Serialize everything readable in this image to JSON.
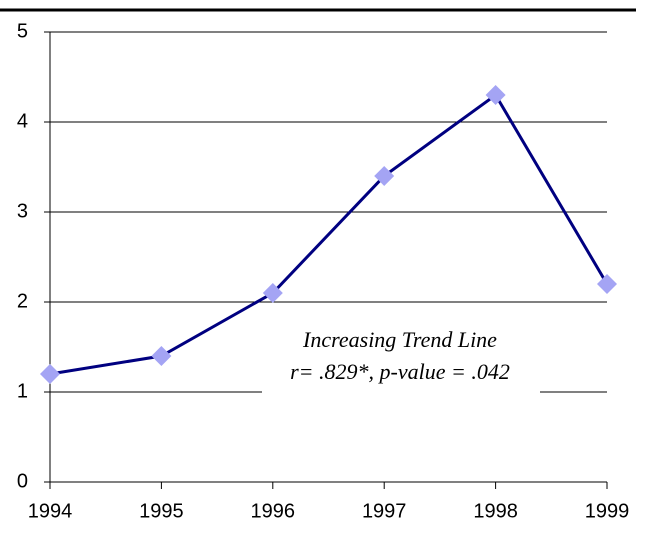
{
  "chart_data": {
    "type": "line",
    "x": [
      1994,
      1995,
      1996,
      1997,
      1998,
      1999
    ],
    "series": [
      {
        "name": null,
        "color": "#000080",
        "marker_color": "#a4a4f4",
        "values": [
          1.2,
          1.4,
          2.1,
          3.4,
          4.3,
          2.2
        ]
      }
    ],
    "xlim": [
      1994,
      1999
    ],
    "xticks": [
      1994,
      1995,
      1996,
      1997,
      1998,
      1999
    ],
    "ylim": [
      0,
      5
    ],
    "yticks": [
      0,
      1,
      2,
      3,
      4,
      5
    ],
    "grid": true,
    "annotations": [
      "Increasing Trend Line",
      "r= .829*, p-value = .042"
    ]
  }
}
